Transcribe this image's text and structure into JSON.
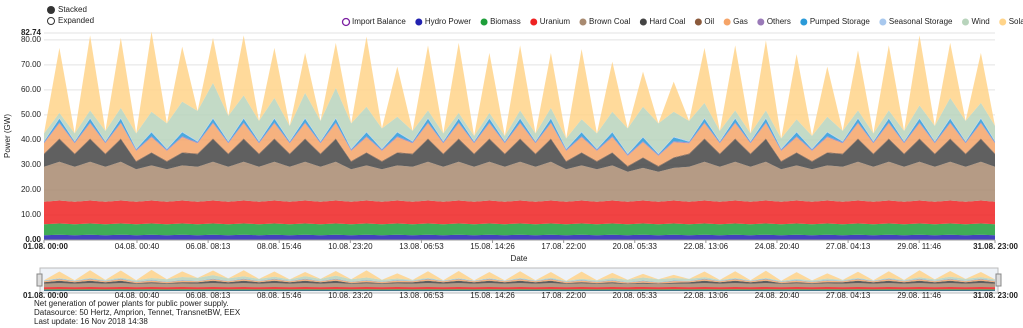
{
  "chart_data": {
    "type": "stacked-area",
    "modes": [
      "Stacked",
      "Expanded"
    ],
    "y_label": "Power (GW)",
    "x_label": "Date",
    "footer": [
      "Net generation of power plants for public power supply.",
      "Datasource: 50 Hertz, Amprion, Tennet, TransnetBW, EEX",
      "Last update: 16 Nov 2018 14:38"
    ],
    "ylim": [
      0,
      82.74
    ],
    "yticks": [
      {
        "value": 0,
        "label": "0.00"
      },
      {
        "value": 10,
        "label": "10.00"
      },
      {
        "value": 20,
        "label": "20.00"
      },
      {
        "value": 30,
        "label": "30.00"
      },
      {
        "value": 40,
        "label": "40.00"
      },
      {
        "value": 50,
        "label": "50.00"
      },
      {
        "value": 60,
        "label": "60.00"
      },
      {
        "value": 70,
        "label": "70.00"
      },
      {
        "value": 80,
        "label": "80.00"
      },
      82.74
    ],
    "xlim": [
      "01.08. 00:00",
      "31.08. 23:00"
    ],
    "xticks": [
      "01.08. 00:00",
      "04.08. 00:40",
      "06.08. 08:13",
      "08.08. 15:46",
      "10.08. 23:20",
      "13.08. 06:53",
      "15.08. 14:26",
      "17.08. 22:00",
      "20.08. 05:33",
      "22.08. 13:06",
      "24.08. 20:40",
      "27.08. 04:13",
      "29.08. 11:46",
      "31.08. 23:00"
    ],
    "grid": true,
    "x": [
      "01.08. 00:00",
      "01.08. 12:00",
      "02.08. 00:00",
      "02.08. 12:00",
      "03.08. 00:00",
      "03.08. 12:00",
      "04.08. 00:00",
      "04.08. 12:00",
      "05.08. 00:00",
      "05.08. 12:00",
      "06.08. 00:00",
      "06.08. 12:00",
      "07.08. 00:00",
      "07.08. 12:00",
      "08.08. 00:00",
      "08.08. 12:00",
      "09.08. 00:00",
      "09.08. 12:00",
      "10.08. 00:00",
      "10.08. 12:00",
      "11.08. 00:00",
      "11.08. 12:00",
      "12.08. 00:00",
      "12.08. 12:00",
      "13.08. 00:00",
      "13.08. 12:00",
      "14.08. 00:00",
      "14.08. 12:00",
      "15.08. 00:00",
      "15.08. 12:00",
      "16.08. 00:00",
      "16.08. 12:00",
      "17.08. 00:00",
      "17.08. 12:00",
      "18.08. 00:00",
      "18.08. 12:00",
      "19.08. 00:00",
      "19.08. 12:00",
      "20.08. 00:00",
      "20.08. 12:00",
      "21.08. 00:00",
      "21.08. 12:00",
      "22.08. 00:00",
      "22.08. 12:00",
      "23.08. 00:00",
      "23.08. 12:00",
      "24.08. 00:00",
      "24.08. 12:00",
      "25.08. 00:00",
      "25.08. 12:00",
      "26.08. 00:00",
      "26.08. 12:00",
      "27.08. 00:00",
      "27.08. 12:00",
      "28.08. 00:00",
      "28.08. 12:00",
      "29.08. 00:00",
      "29.08. 12:00",
      "30.08. 00:00",
      "30.08. 12:00",
      "31.08. 00:00",
      "31.08. 12:00",
      "31.08. 23:00"
    ],
    "series": [
      {
        "name": "Import Balance",
        "color": "#7b1fa2",
        "visible": false,
        "values": [
          null,
          null,
          null,
          null,
          null,
          null,
          null,
          null,
          null,
          null,
          null,
          null,
          null,
          null,
          null,
          null,
          null,
          null,
          null,
          null,
          null,
          null,
          null,
          null,
          null,
          null,
          null,
          null,
          null,
          null,
          null,
          null,
          null,
          null,
          null,
          null,
          null,
          null,
          null,
          null,
          null,
          null,
          null,
          null,
          null,
          null,
          null,
          null,
          null,
          null,
          null,
          null,
          null,
          null,
          null,
          null,
          null,
          null,
          null,
          null,
          null,
          null,
          null
        ]
      },
      {
        "name": "Hydro Power",
        "color": "#2222b0",
        "values": [
          1.9,
          2.1,
          1.9,
          2.1,
          1.9,
          2.1,
          1.9,
          2.1,
          1.9,
          2.1,
          1.9,
          2.1,
          1.9,
          2.1,
          1.9,
          2.1,
          1.9,
          2.1,
          1.9,
          2.1,
          1.9,
          2.1,
          1.9,
          2.1,
          1.9,
          2.1,
          1.9,
          2.1,
          1.9,
          2.1,
          1.9,
          2.1,
          1.9,
          2.1,
          1.9,
          2.1,
          1.9,
          2.1,
          1.9,
          2.1,
          1.9,
          2.1,
          1.9,
          2.1,
          1.9,
          2.1,
          1.9,
          2.1,
          1.9,
          2.1,
          1.9,
          2.1,
          1.9,
          2.1,
          1.9,
          2.1,
          1.9,
          2.1,
          1.9,
          2.1,
          1.9,
          2.1,
          1.9
        ]
      },
      {
        "name": "Biomass",
        "color": "#1e9e3a",
        "values": [
          4.4,
          4.5,
          4.4,
          4.5,
          4.4,
          4.5,
          4.4,
          4.5,
          4.4,
          4.5,
          4.4,
          4.5,
          4.4,
          4.5,
          4.4,
          4.5,
          4.4,
          4.5,
          4.4,
          4.5,
          4.4,
          4.5,
          4.4,
          4.5,
          4.4,
          4.5,
          4.4,
          4.5,
          4.4,
          4.5,
          4.4,
          4.5,
          4.4,
          4.5,
          4.4,
          4.5,
          4.4,
          4.5,
          4.4,
          4.5,
          4.4,
          4.5,
          4.4,
          4.5,
          4.4,
          4.5,
          4.4,
          4.5,
          4.4,
          4.5,
          4.4,
          4.5,
          4.4,
          4.5,
          4.4,
          4.5,
          4.4,
          4.5,
          4.4,
          4.5,
          4.4,
          4.5,
          4.4
        ]
      },
      {
        "name": "Uranium",
        "color": "#ee2222",
        "values": [
          9,
          9.2,
          9,
          9.2,
          9,
          9.2,
          9,
          9.2,
          9,
          9.2,
          9,
          9.2,
          9,
          9.2,
          9,
          9.2,
          9,
          9.2,
          9,
          9.2,
          9,
          9.2,
          9,
          9.2,
          9,
          9.2,
          9,
          9.2,
          9,
          9.2,
          9,
          9.2,
          9,
          9.2,
          9,
          9.2,
          9,
          9.2,
          9,
          9.2,
          9,
          9.2,
          9,
          9.2,
          9,
          9.2,
          9,
          9.2,
          9,
          9.2,
          9,
          9.2,
          9,
          9.2,
          9,
          9.2,
          9,
          9.2,
          9,
          9.2,
          9,
          9.2,
          9
        ]
      },
      {
        "name": "Brown Coal",
        "color": "#a88a70",
        "values": [
          14,
          15.5,
          14,
          15.5,
          14,
          15.5,
          13,
          14,
          13,
          14,
          14,
          15.5,
          14,
          15.5,
          14,
          15.5,
          14,
          15.5,
          14,
          15.5,
          13,
          14,
          13,
          14,
          14,
          15.5,
          14,
          15.5,
          14,
          15.5,
          14,
          15.5,
          14,
          15.5,
          13,
          14,
          13,
          14,
          12,
          13,
          12,
          13,
          14,
          15.5,
          14,
          15.5,
          14,
          15.5,
          13,
          14,
          13,
          14,
          14,
          15.5,
          14,
          15.5,
          14,
          15.5,
          14,
          15.5,
          14,
          15.5,
          14
        ]
      },
      {
        "name": "Hard Coal",
        "color": "#444444",
        "values": [
          5,
          9,
          5,
          9,
          5,
          9,
          3,
          5,
          3,
          5,
          5,
          9,
          5,
          9,
          5,
          9,
          5,
          9,
          5,
          9,
          3,
          5,
          3,
          5,
          5,
          9,
          5,
          9,
          5,
          9,
          5,
          9,
          5,
          9,
          3,
          5,
          3,
          5,
          2,
          4,
          2,
          4,
          5,
          9,
          5,
          9,
          5,
          9,
          3,
          5,
          3,
          5,
          5,
          9,
          5,
          9,
          5,
          9,
          5,
          9,
          5,
          9,
          5
        ]
      },
      {
        "name": "Oil",
        "color": "#8b5a3c",
        "values": [
          0.3,
          0.3,
          0.3,
          0.3,
          0.3,
          0.3,
          0.3,
          0.3,
          0.3,
          0.3,
          0.3,
          0.3,
          0.3,
          0.3,
          0.3,
          0.3,
          0.3,
          0.3,
          0.3,
          0.3,
          0.3,
          0.3,
          0.3,
          0.3,
          0.3,
          0.3,
          0.3,
          0.3,
          0.3,
          0.3,
          0.3,
          0.3,
          0.3,
          0.3,
          0.3,
          0.3,
          0.3,
          0.3,
          0.3,
          0.3,
          0.3,
          0.3,
          0.3,
          0.3,
          0.3,
          0.3,
          0.3,
          0.3,
          0.3,
          0.3,
          0.3,
          0.3,
          0.3,
          0.3,
          0.3,
          0.3,
          0.3,
          0.3,
          0.3,
          0.3,
          0.3,
          0.3,
          0.3
        ]
      },
      {
        "name": "Gas",
        "color": "#f5a468",
        "values": [
          4,
          6,
          4,
          6,
          4,
          6,
          4,
          6,
          4,
          6,
          4,
          6,
          4,
          6,
          4,
          6,
          4,
          6,
          4,
          6,
          4,
          6,
          4,
          6,
          4,
          6,
          4,
          6,
          4,
          6,
          4,
          6,
          4,
          6,
          4,
          6,
          4,
          6,
          4,
          6,
          4,
          6,
          4,
          6,
          4,
          6,
          4,
          6,
          4,
          6,
          4,
          6,
          4,
          6,
          4,
          6,
          4,
          6,
          4,
          6,
          4,
          6,
          4
        ]
      },
      {
        "name": "Others",
        "color": "#9a7ab8",
        "values": [
          0.4,
          0.4,
          0.4,
          0.4,
          0.4,
          0.4,
          0.4,
          0.4,
          0.4,
          0.4,
          0.4,
          0.4,
          0.4,
          0.4,
          0.4,
          0.4,
          0.4,
          0.4,
          0.4,
          0.4,
          0.4,
          0.4,
          0.4,
          0.4,
          0.4,
          0.4,
          0.4,
          0.4,
          0.4,
          0.4,
          0.4,
          0.4,
          0.4,
          0.4,
          0.4,
          0.4,
          0.4,
          0.4,
          0.4,
          0.4,
          0.4,
          0.4,
          0.4,
          0.4,
          0.4,
          0.4,
          0.4,
          0.4,
          0.4,
          0.4,
          0.4,
          0.4,
          0.4,
          0.4,
          0.4,
          0.4,
          0.4,
          0.4,
          0.4,
          0.4,
          0.4,
          0.4,
          0.4
        ]
      },
      {
        "name": "Pumped Storage",
        "color": "#2a9ad8",
        "values": [
          0.3,
          1.5,
          0.3,
          1.5,
          0.3,
          1.5,
          0.3,
          1.5,
          0.3,
          1.5,
          0.3,
          1.5,
          0.3,
          1.5,
          0.3,
          1.5,
          0.3,
          1.5,
          0.3,
          1.5,
          0.3,
          1.5,
          0.3,
          1.5,
          0.3,
          1.5,
          0.3,
          1.5,
          0.3,
          1.5,
          0.3,
          1.5,
          0.3,
          1.5,
          0.3,
          1.5,
          0.3,
          1.5,
          0.3,
          1.5,
          0.3,
          1.5,
          0.3,
          1.5,
          0.3,
          1.5,
          0.3,
          1.5,
          0.3,
          1.5,
          0.3,
          1.5,
          0.3,
          1.5,
          0.3,
          1.5,
          0.3,
          1.5,
          0.3,
          1.5,
          0.3,
          1.5,
          0.3
        ]
      },
      {
        "name": "Seasonal Storage",
        "color": "#a8c8ee",
        "values": [
          0.3,
          0.3,
          0.3,
          0.3,
          0.3,
          0.3,
          0.3,
          0.3,
          0.3,
          0.3,
          0.3,
          0.3,
          0.3,
          0.3,
          0.3,
          0.3,
          0.3,
          0.3,
          0.3,
          0.3,
          0.3,
          0.3,
          0.3,
          0.3,
          0.3,
          0.3,
          0.3,
          0.3,
          0.3,
          0.3,
          0.3,
          0.3,
          0.3,
          0.3,
          0.3,
          0.3,
          0.3,
          0.3,
          0.3,
          0.3,
          0.3,
          0.3,
          0.3,
          0.3,
          0.3,
          0.3,
          0.3,
          0.3,
          0.3,
          0.3,
          0.3,
          0.3,
          0.3,
          0.3,
          0.3,
          0.3,
          0.3,
          0.3,
          0.3,
          0.3,
          0.3,
          0.3,
          0.3
        ]
      },
      {
        "name": "Wind",
        "color": "#b8d4bc",
        "values": [
          3,
          2,
          3,
          3,
          4,
          4,
          6,
          8,
          10,
          12,
          12,
          14,
          10,
          9,
          8,
          8,
          6,
          10,
          8,
          12,
          10,
          10,
          8,
          6,
          4,
          3,
          3,
          2,
          2,
          2,
          2,
          3,
          3,
          4,
          4,
          5,
          6,
          8,
          10,
          12,
          12,
          10,
          8,
          6,
          4,
          3,
          3,
          3,
          4,
          5,
          5,
          6,
          4,
          3,
          3,
          3,
          4,
          5,
          6,
          8,
          8,
          6,
          6
        ]
      },
      {
        "name": "Solar",
        "color": "#ffd48a",
        "values": [
          0,
          26,
          0,
          30,
          0,
          28,
          0,
          32,
          0,
          22,
          0,
          18,
          0,
          24,
          0,
          20,
          0,
          16,
          0,
          18,
          0,
          28,
          0,
          20,
          0,
          26,
          0,
          28,
          0,
          24,
          0,
          26,
          0,
          22,
          0,
          28,
          0,
          20,
          0,
          14,
          0,
          12,
          0,
          22,
          0,
          26,
          0,
          28,
          0,
          26,
          0,
          20,
          0,
          24,
          0,
          26,
          0,
          28,
          0,
          22,
          0,
          20,
          0
        ]
      }
    ]
  }
}
